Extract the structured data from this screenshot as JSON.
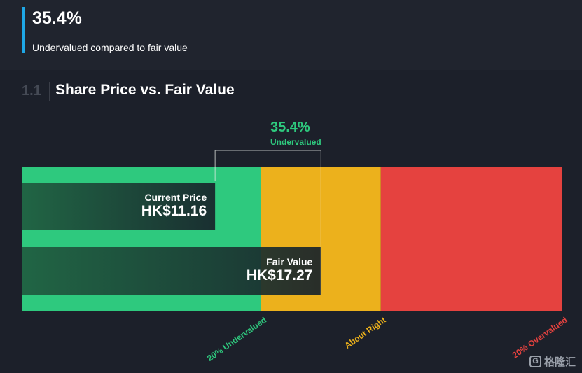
{
  "summary": {
    "value": "35.4%",
    "caption": "Undervalued compared to fair value"
  },
  "section": {
    "number": "1.1",
    "title": "Share Price vs. Fair Value"
  },
  "colors": {
    "undervalued": "#2ec97e",
    "about_right": "#ecb11c",
    "overvalued": "#e5423f",
    "bar_fill": "#173c2c",
    "accent": "#1ea7e6"
  },
  "chart_data": {
    "type": "bar",
    "orientation": "horizontal",
    "title": "Share Price vs. Fair Value",
    "currency": "HK$",
    "bars": [
      {
        "label": "Current Price",
        "value": 11.16,
        "display": "HK$11.16"
      },
      {
        "label": "Fair Value",
        "value": 17.27,
        "display": "HK$17.27"
      }
    ],
    "difference": {
      "value": "35.4%",
      "label": "Undervalued"
    },
    "zones": [
      {
        "label": "20% Undervalued",
        "from": 0,
        "to": 13.816,
        "color": "#2ec97e"
      },
      {
        "label": "About Right",
        "from": 13.816,
        "to": 20.724,
        "color": "#ecb11c"
      },
      {
        "label": "20% Overvalued",
        "from": 20.724,
        "to": 31.2,
        "color": "#e5423f"
      }
    ],
    "xlim": [
      0,
      31.2
    ]
  },
  "watermark": {
    "icon": "G",
    "text": "格隆汇"
  }
}
